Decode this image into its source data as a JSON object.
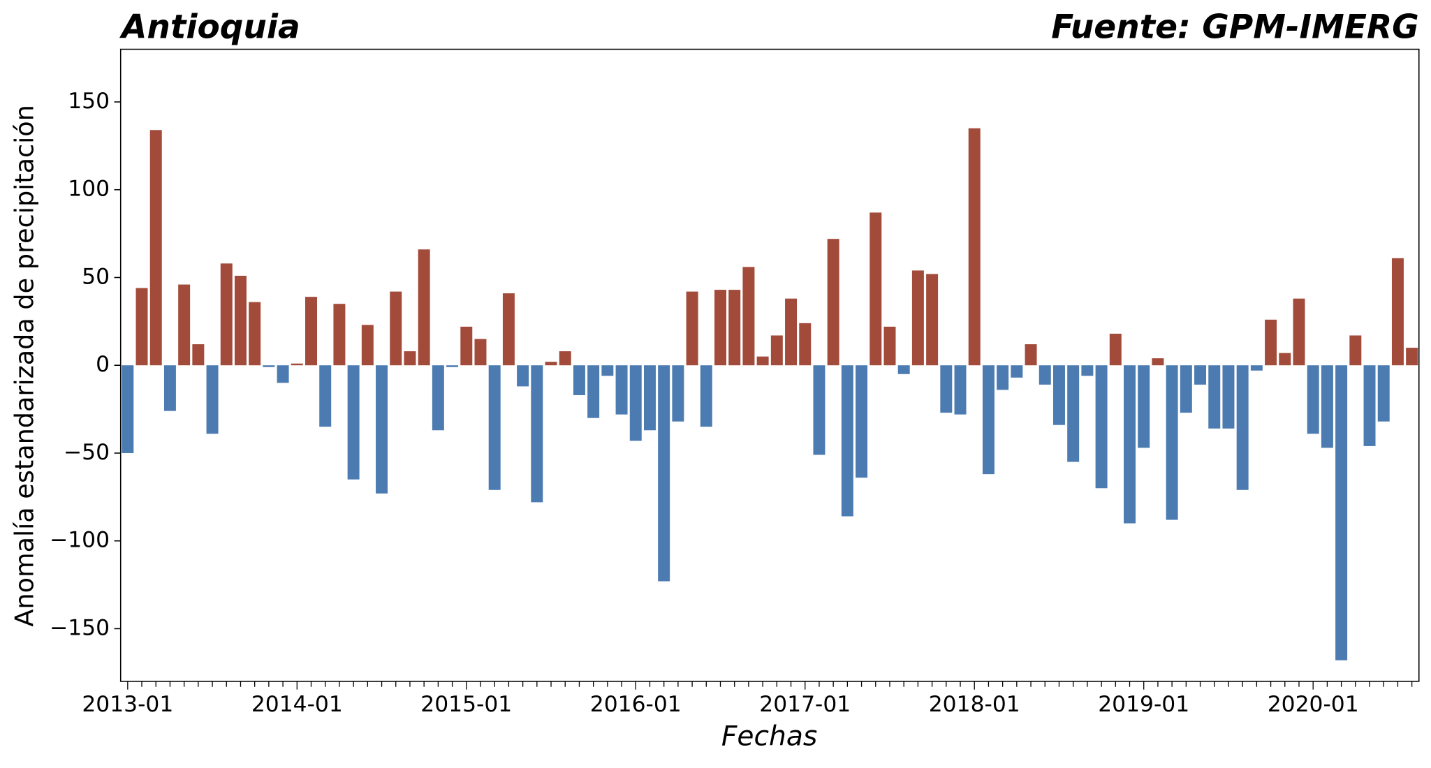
{
  "chart_data": {
    "type": "bar",
    "title": "Antioquia",
    "subtitle": "Fuente: GPM-IMERG",
    "x_label": "Fechas",
    "y_label": "Anomalía estandarizada de precipitación",
    "categories": [
      "2013-01",
      null,
      null,
      null,
      null,
      null,
      null,
      null,
      null,
      null,
      null,
      null,
      "2014-01",
      null,
      null,
      null,
      null,
      null,
      null,
      null,
      null,
      null,
      null,
      null,
      "2015-01",
      null,
      null,
      null,
      null,
      null,
      null,
      null,
      null,
      null,
      null,
      null,
      "2016-01",
      null,
      null,
      null,
      null,
      null,
      null,
      null,
      null,
      null,
      null,
      null,
      "2017-01",
      null,
      null,
      null,
      null,
      null,
      null,
      null,
      null,
      null,
      null,
      null,
      "2018-01",
      null,
      null,
      null,
      null,
      null,
      null,
      null,
      null,
      null,
      null,
      null,
      "2019-01",
      null,
      null,
      null,
      null,
      null,
      null,
      null,
      null,
      null,
      null,
      null,
      "2020-01",
      null,
      null,
      null,
      null,
      null,
      null,
      null
    ],
    "values": [
      -50,
      44,
      134,
      -26,
      46,
      12,
      -39,
      58,
      51,
      36,
      -1,
      -10,
      1,
      39,
      -35,
      35,
      -65,
      23,
      -73,
      42,
      8,
      66,
      -37,
      -1,
      22,
      15,
      -71,
      41,
      -12,
      -78,
      2,
      8,
      -17,
      -30,
      -6,
      -28,
      -43,
      -37,
      -123,
      -32,
      42,
      -35,
      43,
      43,
      56,
      5,
      17,
      38,
      24,
      -51,
      72,
      -86,
      -64,
      87,
      22,
      -5,
      54,
      52,
      -27,
      -28,
      135,
      -62,
      -14,
      -7,
      12,
      -11,
      -34,
      -55,
      -6,
      -70,
      18,
      -90,
      -47,
      4,
      -88,
      -27,
      -11,
      -36,
      -36,
      -71,
      -3,
      26,
      7,
      38,
      -39,
      -47,
      -168,
      17,
      -46,
      -32,
      61,
      10
    ],
    "positive_color": "#a34b3b",
    "negative_color": "#4c7bb1",
    "ylim": [
      -180,
      180
    ],
    "yticks": [
      {
        "value": -150,
        "label": "−150"
      },
      {
        "value": -100,
        "label": "−100"
      },
      {
        "value": -50,
        "label": "−50"
      },
      0,
      50,
      100,
      150
    ],
    "grid": false
  }
}
